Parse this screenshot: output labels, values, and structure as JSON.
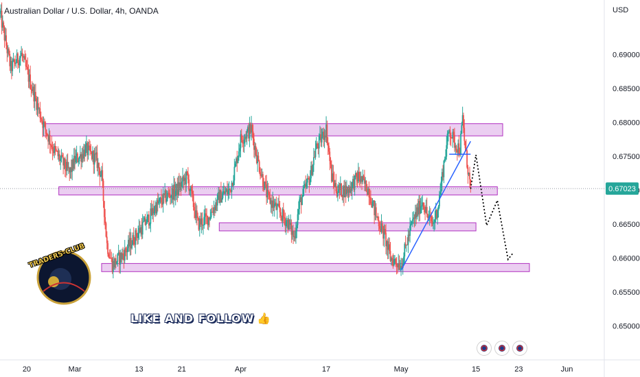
{
  "header": {
    "title": "Australian Dollar / U.S. Dollar, 4h, OANDA",
    "currency": "USD"
  },
  "overlay": {
    "cta_text": "LIKE AND FOLLOW",
    "cta_icon": "thumbs-up-icon",
    "logo_text": "TRADERS-CLUB"
  },
  "colors": {
    "bull": "#26a69a",
    "bear": "#ef5350",
    "zone_fill": "#e7c6ee",
    "zone_border": "#b030c0",
    "trendline": "#2962ff",
    "last_price_bg": "#26a69a",
    "axis_text": "#131722",
    "dotted_line": "#000000"
  },
  "chart_data": {
    "type": "candlestick",
    "symbol": "AUDUSD",
    "timeframe": "4h",
    "last_price": 0.67023,
    "last_price_label": "0.67023",
    "ylim": [
      0.645,
      0.696
    ],
    "y_ticks": [
      "0.65000",
      "0.65500",
      "0.66000",
      "0.66500",
      "0.67000",
      "0.67500",
      "0.68000",
      "0.68500",
      "0.69000"
    ],
    "x_tick_labels": [
      "20",
      "Mar",
      "13",
      "21",
      "Apr",
      "17",
      "May",
      "15",
      "23",
      "Jun"
    ],
    "price_path": [
      [
        "2023-02-15",
        0.696
      ],
      [
        "2023-02-17",
        0.688
      ],
      [
        "2023-02-19",
        0.69
      ],
      [
        "2023-02-21",
        0.685
      ],
      [
        "2023-02-23",
        0.68
      ],
      [
        "2023-02-25",
        0.676
      ],
      [
        "2023-02-28",
        0.6725
      ],
      [
        "2023-03-01",
        0.6745
      ],
      [
        "2023-03-02",
        0.675
      ],
      [
        "2023-03-03",
        0.676
      ],
      [
        "2023-03-05",
        0.6745
      ],
      [
        "2023-03-06",
        0.672
      ],
      [
        "2023-03-07",
        0.662
      ],
      [
        "2023-03-08",
        0.659
      ],
      [
        "2023-03-10",
        0.6605
      ],
      [
        "2023-03-13",
        0.664
      ],
      [
        "2023-03-15",
        0.666
      ],
      [
        "2023-03-16",
        0.6675
      ],
      [
        "2023-03-18",
        0.669
      ],
      [
        "2023-03-20",
        0.67
      ],
      [
        "2023-03-22",
        0.672
      ],
      [
        "2023-03-24",
        0.665
      ],
      [
        "2023-03-26",
        0.666
      ],
      [
        "2023-03-28",
        0.669
      ],
      [
        "2023-03-30",
        0.67
      ],
      [
        "2023-03-31",
        0.6735
      ],
      [
        "2023-04-01",
        0.6775
      ],
      [
        "2023-04-03",
        0.679
      ],
      [
        "2023-04-04",
        0.675
      ],
      [
        "2023-04-06",
        0.669
      ],
      [
        "2023-04-08",
        0.667
      ],
      [
        "2023-04-10",
        0.665
      ],
      [
        "2023-04-11",
        0.663
      ],
      [
        "2023-04-12",
        0.668
      ],
      [
        "2023-04-14",
        0.672
      ],
      [
        "2023-04-15",
        0.676
      ],
      [
        "2023-04-17",
        0.679
      ],
      [
        "2023-04-18",
        0.672
      ],
      [
        "2023-04-19",
        0.67
      ],
      [
        "2023-04-21",
        0.67
      ],
      [
        "2023-04-23",
        0.672
      ],
      [
        "2023-04-25",
        0.67
      ],
      [
        "2023-04-26",
        0.667
      ],
      [
        "2023-04-28",
        0.663
      ],
      [
        "2023-04-29",
        0.66
      ],
      [
        "2023-05-01",
        0.659
      ],
      [
        "2023-05-02",
        0.662
      ],
      [
        "2023-05-03",
        0.665
      ],
      [
        "2023-05-05",
        0.6685
      ],
      [
        "2023-05-06",
        0.666
      ],
      [
        "2023-05-07",
        0.665
      ],
      [
        "2023-05-08",
        0.668
      ],
      [
        "2023-05-09",
        0.674
      ],
      [
        "2023-05-10",
        0.679
      ],
      [
        "2023-05-11",
        0.677
      ],
      [
        "2023-05-12",
        0.676
      ],
      [
        "2023-05-12T12:00",
        0.6805
      ],
      [
        "2023-05-13",
        0.676
      ],
      [
        "2023-05-14",
        0.6702
      ]
    ],
    "zones": [
      {
        "from": "2023-02-23",
        "to": "2023-05-20",
        "low": 0.678,
        "high": 0.6798
      },
      {
        "from": "2023-02-26",
        "to": "2023-05-19",
        "low": 0.6693,
        "high": 0.6705
      },
      {
        "from": "2023-03-28",
        "to": "2023-05-15",
        "low": 0.664,
        "high": 0.6652
      },
      {
        "from": "2023-03-06",
        "to": "2023-05-25",
        "low": 0.658,
        "high": 0.6592
      }
    ],
    "trendlines": [
      {
        "points": [
          [
            "2023-05-01",
            0.6582
          ],
          [
            "2023-05-14",
            0.6772
          ]
        ]
      },
      {
        "points": [
          [
            "2023-05-10",
            0.6753
          ],
          [
            "2023-05-14",
            0.6753
          ]
        ]
      }
    ],
    "projection_path": [
      [
        "2023-05-14",
        0.6702
      ],
      [
        "2023-05-15",
        0.6752
      ],
      [
        "2023-05-17",
        0.6648
      ],
      [
        "2023-05-19",
        0.6685
      ],
      [
        "2023-05-21",
        0.6598
      ],
      [
        "2023-05-22",
        0.6608
      ]
    ]
  }
}
